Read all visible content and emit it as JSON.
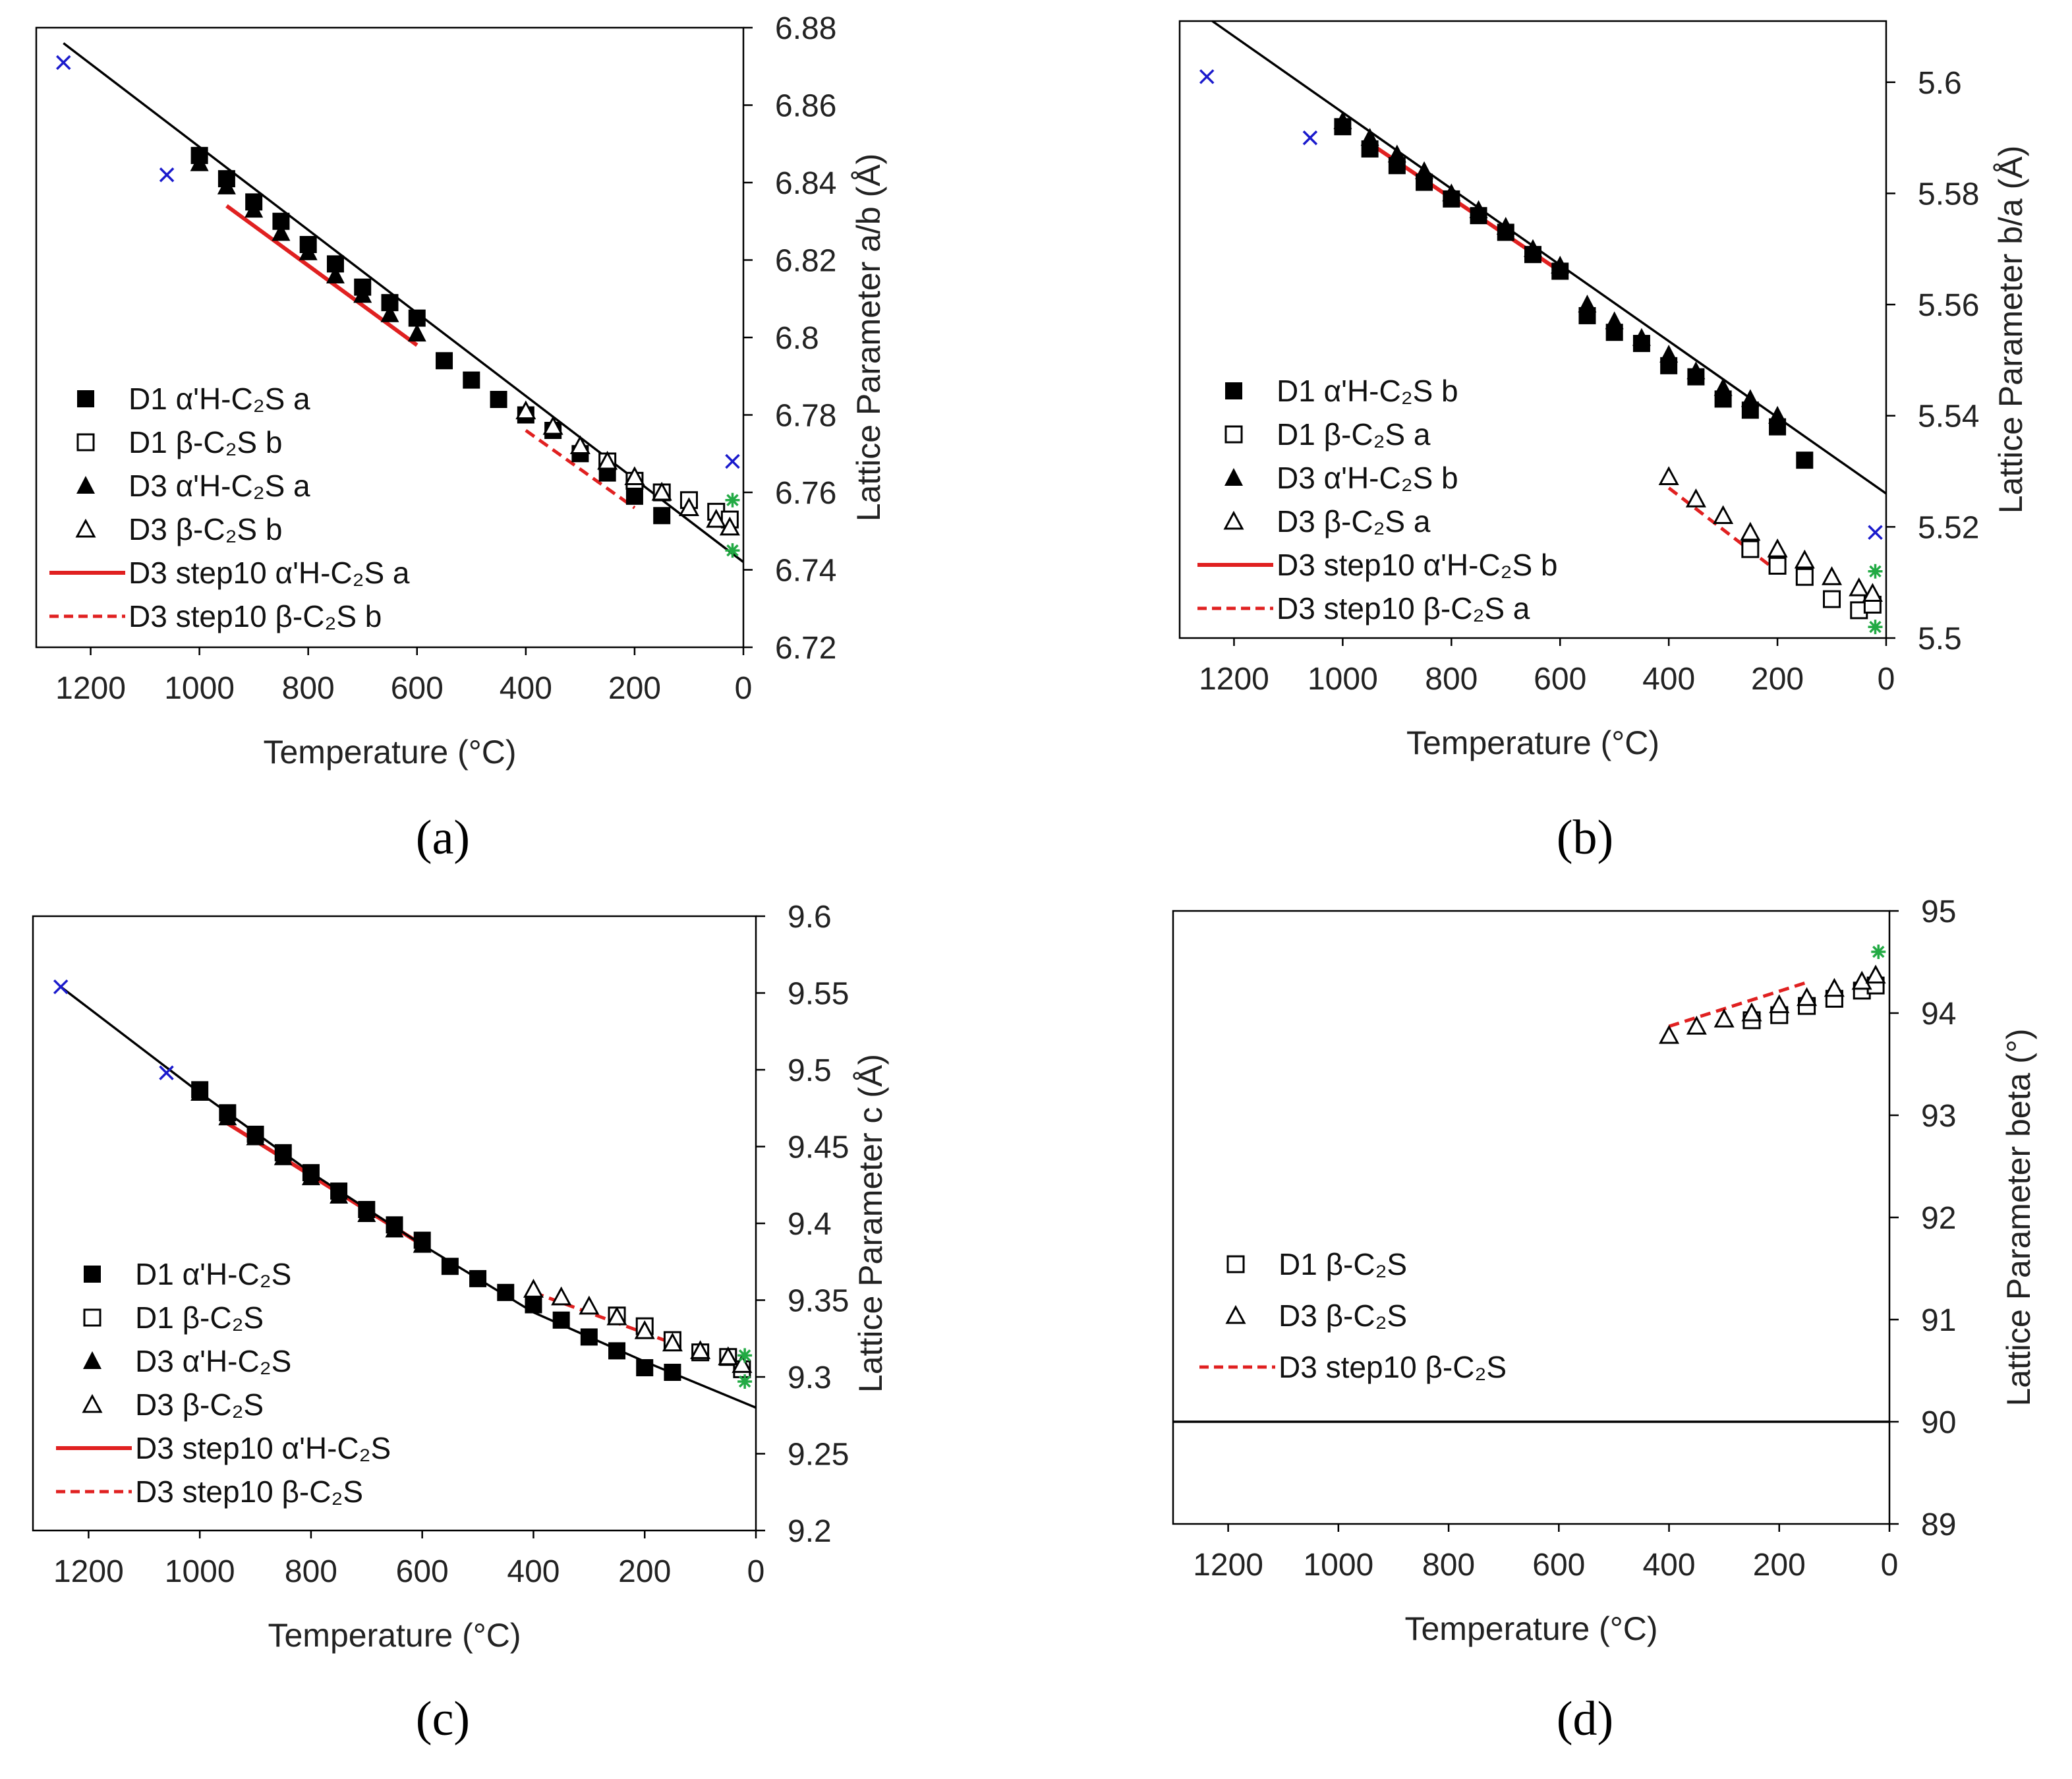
{
  "figure": {
    "captions": [
      "(a)",
      "(b)",
      "(c)",
      "(d)"
    ]
  },
  "colors": {
    "axis": "#000000",
    "fit_line": "#000000",
    "step10": "#e02020",
    "cross_blue": "#1a1acc",
    "star_green": "#22aa44"
  },
  "chart_data": [
    {
      "type": "scatter",
      "panel": "(a)",
      "xlabel": "Temperature (°C)",
      "ylabel": "Lattice Parameter a/b (Å)",
      "xlim": [
        1300,
        0
      ],
      "ylim": [
        6.72,
        6.88
      ],
      "xticks": [
        1200,
        1000,
        800,
        600,
        400,
        200,
        0
      ],
      "yticks": [
        6.72,
        6.74,
        6.76,
        6.78,
        6.8,
        6.82,
        6.84,
        6.86,
        6.88
      ],
      "ytick_labels": [
        "6.72",
        "6.74",
        "6.76",
        "6.78",
        "6.8",
        "6.82",
        "6.84",
        "6.86",
        "6.88"
      ],
      "legend": [
        {
          "label": "D1 α'H-C₂S a",
          "marker": "filled-square"
        },
        {
          "label": "D1 β-C₂S b",
          "marker": "open-square"
        },
        {
          "label": "D3 α'H-C₂S a",
          "marker": "filled-triangle"
        },
        {
          "label": "D3 β-C₂S b",
          "marker": "open-triangle"
        },
        {
          "label": "D3 step10 α'H-C₂S a",
          "marker": "red-solid"
        },
        {
          "label": "D3 step10  β-C₂S b",
          "marker": "red-dashed"
        }
      ],
      "series": [
        {
          "name": "D1 α'H-C₂S a",
          "marker": "filled-square",
          "x": [
            1000,
            950,
            900,
            850,
            800,
            750,
            700,
            650,
            600,
            550,
            500,
            450,
            400,
            350,
            300,
            250,
            200,
            150
          ],
          "y": [
            6.847,
            6.841,
            6.835,
            6.83,
            6.824,
            6.819,
            6.813,
            6.809,
            6.805,
            6.794,
            6.789,
            6.784,
            6.78,
            6.776,
            6.77,
            6.765,
            6.759,
            6.754
          ]
        },
        {
          "name": "D3 α'H-C₂S a",
          "marker": "filled-triangle",
          "x": [
            1000,
            950,
            900,
            850,
            800,
            750,
            700,
            650,
            600
          ],
          "y": [
            6.845,
            6.839,
            6.833,
            6.827,
            6.822,
            6.816,
            6.811,
            6.806,
            6.801
          ]
        },
        {
          "name": "D1 β-C₂S b",
          "marker": "open-square",
          "x": [
            250,
            200,
            150,
            100,
            50,
            25
          ],
          "y": [
            6.768,
            6.763,
            6.76,
            6.758,
            6.755,
            6.753
          ]
        },
        {
          "name": "D3 β-C₂S b",
          "marker": "open-triangle",
          "x": [
            400,
            350,
            300,
            250,
            200,
            150,
            100,
            50,
            25
          ],
          "y": [
            6.781,
            6.777,
            6.772,
            6.768,
            6.764,
            6.76,
            6.756,
            6.753,
            6.751
          ]
        },
        {
          "name": "D3 step10 α'H-C₂S a",
          "kind": "line",
          "style": "solid",
          "x": [
            950,
            600
          ],
          "y": [
            6.834,
            6.798
          ]
        },
        {
          "name": "D3 step10  β-C₂S b",
          "kind": "line",
          "style": "dashed",
          "x": [
            400,
            200
          ],
          "y": [
            6.776,
            6.756
          ]
        },
        {
          "name": "reference (blue ×)",
          "marker": "cross",
          "x": [
            1250,
            1060,
            20
          ],
          "y": [
            6.871,
            6.842,
            6.768
          ]
        },
        {
          "name": "reference (green *)",
          "marker": "star",
          "x": [
            20,
            20
          ],
          "y": [
            6.758,
            6.745
          ]
        },
        {
          "name": "fit",
          "kind": "line",
          "style": "solid-black",
          "x": [
            1250,
            0
          ],
          "y": [
            6.876,
            6.742
          ]
        }
      ]
    },
    {
      "type": "scatter",
      "panel": "(b)",
      "xlabel": "Temperature (°C)",
      "ylabel": "Lattice Parameter b/a (Å)",
      "xlim": [
        1300,
        0
      ],
      "ylim": [
        5.5,
        5.611
      ],
      "xticks": [
        1200,
        1000,
        800,
        600,
        400,
        200,
        0
      ],
      "yticks": [
        5.5,
        5.52,
        5.54,
        5.56,
        5.58,
        5.6
      ],
      "ytick_labels": [
        "5.5",
        "5.52",
        "5.54",
        "5.56",
        "5.58",
        "5.6"
      ],
      "legend": [
        {
          "label": "D1 α'H-C₂S b",
          "marker": "filled-square"
        },
        {
          "label": "D1 β-C₂S a",
          "marker": "open-square"
        },
        {
          "label": "D3 α'H-C₂S b",
          "marker": "filled-triangle"
        },
        {
          "label": "D3 β-C₂S a",
          "marker": "open-triangle"
        },
        {
          "label": "D3 step10 α'H-C₂S b",
          "marker": "red-solid"
        },
        {
          "label": "D3 step10 β-C₂S a",
          "marker": "red-dashed"
        }
      ],
      "series": [
        {
          "name": "D1 α'H-C₂S b",
          "marker": "filled-square",
          "x": [
            1000,
            950,
            900,
            850,
            800,
            750,
            700,
            650,
            600,
            550,
            500,
            450,
            400,
            350,
            300,
            250,
            200,
            150
          ],
          "y": [
            5.592,
            5.588,
            5.585,
            5.582,
            5.579,
            5.576,
            5.573,
            5.569,
            5.566,
            5.558,
            5.555,
            5.553,
            5.549,
            5.547,
            5.543,
            5.541,
            5.538,
            5.532
          ]
        },
        {
          "name": "D3 α'H-C₂S b",
          "marker": "filled-triangle",
          "x": [
            1000,
            950,
            900,
            850,
            800,
            750,
            700,
            650,
            600,
            550,
            500,
            450,
            400,
            350,
            300,
            250,
            200
          ],
          "y": [
            5.593,
            5.59,
            5.587,
            5.584,
            5.58,
            5.577,
            5.574,
            5.57,
            5.567,
            5.56,
            5.557,
            5.554,
            5.551,
            5.548,
            5.545,
            5.543,
            5.54
          ]
        },
        {
          "name": "D1 β-C₂S a",
          "marker": "open-square",
          "x": [
            250,
            200,
            150,
            100,
            50,
            25
          ],
          "y": [
            5.516,
            5.513,
            5.511,
            5.507,
            5.505,
            5.506
          ]
        },
        {
          "name": "D3 β-C₂S a",
          "marker": "open-triangle",
          "x": [
            400,
            350,
            300,
            250,
            200,
            150,
            100,
            50,
            25
          ],
          "y": [
            5.529,
            5.525,
            5.522,
            5.519,
            5.516,
            5.514,
            5.511,
            5.509,
            5.508
          ]
        },
        {
          "name": "D3 step10 α'H-C₂S b",
          "kind": "line",
          "style": "solid",
          "x": [
            950,
            600
          ],
          "y": [
            5.589,
            5.566
          ]
        },
        {
          "name": "D3 step10 β-C₂S a",
          "kind": "line",
          "style": "dashed",
          "x": [
            400,
            200
          ],
          "y": [
            5.527,
            5.512
          ]
        },
        {
          "name": "reference (blue ×)",
          "marker": "cross",
          "x": [
            1250,
            1060,
            20
          ],
          "y": [
            5.601,
            5.59,
            5.519
          ]
        },
        {
          "name": "reference (green *)",
          "marker": "star",
          "x": [
            20,
            20
          ],
          "y": [
            5.512,
            5.502
          ]
        },
        {
          "name": "fit",
          "kind": "line",
          "style": "solid-black",
          "x": [
            1240,
            0
          ],
          "y": [
            5.611,
            5.526
          ]
        }
      ]
    },
    {
      "type": "scatter",
      "panel": "(c)",
      "xlabel": "Temperature (°C)",
      "ylabel": "Lattice Parameter c (Å)",
      "xlim": [
        1300,
        0
      ],
      "ylim": [
        9.2,
        9.6
      ],
      "xticks": [
        1200,
        1000,
        800,
        600,
        400,
        200,
        0
      ],
      "yticks": [
        9.2,
        9.25,
        9.3,
        9.35,
        9.4,
        9.45,
        9.5,
        9.55,
        9.6
      ],
      "ytick_labels": [
        "9.2",
        "9.25",
        "9.3",
        "9.35",
        "9.4",
        "9.45",
        "9.5",
        "9.55",
        "9.6"
      ],
      "legend": [
        {
          "label": "D1 α'H-C₂S",
          "marker": "filled-square"
        },
        {
          "label": "D1 β-C₂S",
          "marker": "open-square"
        },
        {
          "label": "D3 α'H-C₂S",
          "marker": "filled-triangle"
        },
        {
          "label": "D3 β-C₂S",
          "marker": "open-triangle"
        },
        {
          "label": "D3 step10 α'H-C₂S",
          "marker": "red-solid"
        },
        {
          "label": "D3 step10 β-C₂S",
          "marker": "red-dashed"
        }
      ],
      "series": [
        {
          "name": "D1 α'H-C₂S",
          "marker": "filled-square",
          "x": [
            1000,
            950,
            900,
            850,
            800,
            750,
            700,
            650,
            600,
            550,
            500,
            450,
            400,
            350,
            300,
            250,
            200,
            150
          ],
          "y": [
            9.487,
            9.472,
            9.458,
            9.446,
            9.433,
            9.421,
            9.409,
            9.399,
            9.389,
            9.372,
            9.364,
            9.355,
            9.347,
            9.337,
            9.326,
            9.317,
            9.306,
            9.303
          ]
        },
        {
          "name": "D3 α'H-C₂S",
          "marker": "filled-triangle",
          "x": [
            1000,
            950,
            900,
            850,
            800,
            750,
            700,
            650,
            600
          ],
          "y": [
            9.485,
            9.469,
            9.456,
            9.443,
            9.43,
            9.418,
            9.406,
            9.396,
            9.386
          ]
        },
        {
          "name": "D1 β-C₂S",
          "marker": "open-square",
          "x": [
            250,
            200,
            150,
            100,
            50,
            25
          ],
          "y": [
            9.34,
            9.333,
            9.324,
            9.316,
            9.313,
            9.305
          ]
        },
        {
          "name": "D3 β-C₂S",
          "marker": "open-triangle",
          "x": [
            400,
            350,
            300,
            250,
            200,
            150,
            100,
            50,
            25
          ],
          "y": [
            9.357,
            9.352,
            9.346,
            9.339,
            9.33,
            9.322,
            9.317,
            9.313,
            9.308
          ]
        },
        {
          "name": "D3 step10 α'H-C₂S",
          "kind": "line",
          "style": "solid",
          "x": [
            950,
            600
          ],
          "y": [
            9.465,
            9.386
          ]
        },
        {
          "name": "D3 step10 β-C₂S",
          "kind": "line",
          "style": "dashed",
          "x": [
            400,
            150
          ],
          "y": [
            9.355,
            9.322
          ]
        },
        {
          "name": "reference (blue ×)",
          "marker": "cross",
          "x": [
            1250,
            1060
          ],
          "y": [
            9.554,
            9.498
          ]
        },
        {
          "name": "reference (green *)",
          "marker": "star",
          "x": [
            20,
            20
          ],
          "y": [
            9.314,
            9.297
          ]
        },
        {
          "name": "fit",
          "kind": "line",
          "style": "solid-black",
          "x": [
            1250,
            1000,
            800,
            600,
            400,
            200,
            0
          ],
          "y": [
            9.554,
            9.485,
            9.433,
            9.386,
            9.342,
            9.31,
            9.28
          ]
        }
      ]
    },
    {
      "type": "scatter",
      "panel": "(d)",
      "xlabel": "Temperature (°C)",
      "ylabel": "Lattice Parameter beta (°)",
      "xlim": [
        1300,
        0
      ],
      "ylim": [
        89,
        95
      ],
      "xticks": [
        1200,
        1000,
        800,
        600,
        400,
        200,
        0
      ],
      "yticks": [
        89,
        90,
        91,
        92,
        93,
        94,
        95
      ],
      "ytick_labels": [
        "89",
        "90",
        "91",
        "92",
        "93",
        "94",
        "95"
      ],
      "legend": [
        {
          "label": "D1 β-C₂S",
          "marker": "open-square"
        },
        {
          "label": "D3 β-C₂S",
          "marker": "open-triangle"
        },
        {
          "label": "D3 step10 β-C₂S",
          "marker": "red-dashed"
        }
      ],
      "series": [
        {
          "name": "D1 β-C₂S",
          "marker": "open-square",
          "x": [
            250,
            200,
            150,
            100,
            50,
            25
          ],
          "y": [
            93.93,
            93.98,
            94.07,
            94.14,
            94.22,
            94.27
          ]
        },
        {
          "name": "D3 β-C₂S",
          "marker": "open-triangle",
          "x": [
            400,
            350,
            300,
            250,
            200,
            150,
            100,
            50,
            25
          ],
          "y": [
            93.78,
            93.87,
            93.94,
            94.0,
            94.08,
            94.15,
            94.24,
            94.31,
            94.37
          ]
        },
        {
          "name": "D3 step10 β-C₂S",
          "kind": "line",
          "style": "dashed",
          "x": [
            400,
            150
          ],
          "y": [
            93.87,
            94.3
          ]
        },
        {
          "name": "reference (green *)",
          "marker": "star",
          "x": [
            20
          ],
          "y": [
            94.6
          ]
        },
        {
          "name": "baseline",
          "kind": "line",
          "style": "solid-black",
          "x": [
            1300,
            0
          ],
          "y": [
            90,
            90
          ]
        }
      ]
    }
  ]
}
